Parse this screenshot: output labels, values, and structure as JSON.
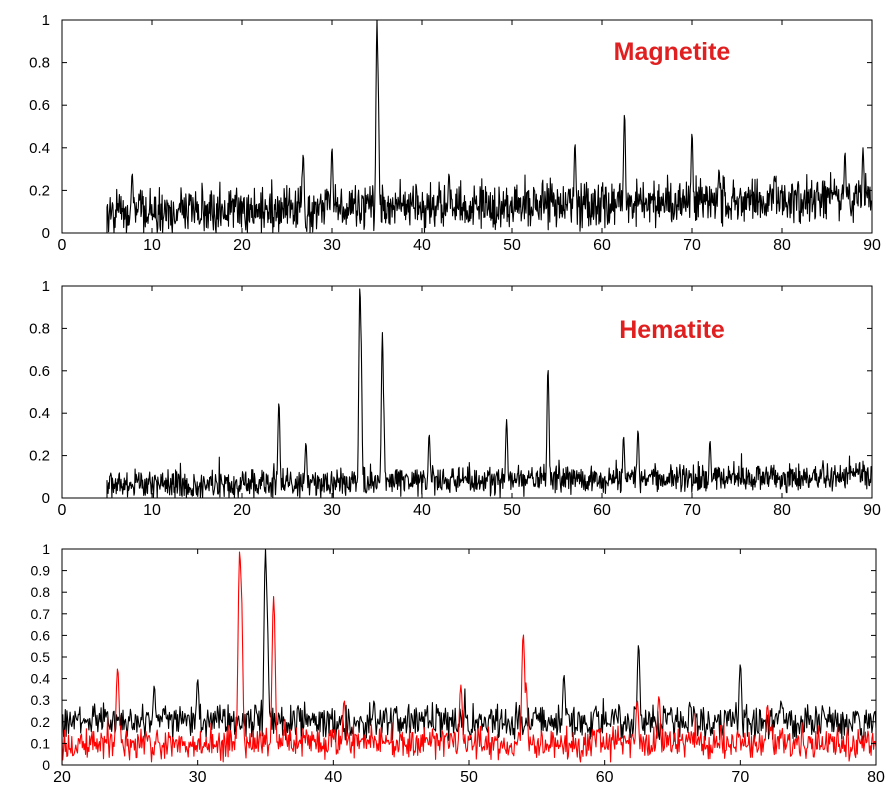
{
  "chart_data": [
    {
      "type": "line",
      "annotation": "Magnetite",
      "xlim": [
        0,
        90
      ],
      "ylim": [
        0,
        1
      ],
      "xticks": [
        0,
        10,
        20,
        30,
        40,
        50,
        60,
        70,
        80,
        90
      ],
      "yticks": [
        0,
        0.2,
        0.4,
        0.6,
        0.8,
        1
      ],
      "ytick_labels": [
        "0",
        "0.2",
        "0.4",
        "0.6",
        "0.8",
        "1"
      ],
      "series": [
        {
          "color": "#000000",
          "x_start": 5,
          "x_end": 90,
          "baseline_start": 0.09,
          "baseline_end": 0.16,
          "noise_amplitude": 0.13,
          "peaks": [
            [
              7.8,
              0.28
            ],
            [
              26.8,
              0.37
            ],
            [
              30.0,
              0.4
            ],
            [
              35.0,
              1.0
            ],
            [
              35.1,
              0.76
            ],
            [
              43.0,
              0.28
            ],
            [
              57.0,
              0.42
            ],
            [
              62.5,
              0.56
            ],
            [
              70.0,
              0.47
            ],
            [
              73.0,
              0.3
            ],
            [
              87.0,
              0.38
            ],
            [
              89.0,
              0.4
            ]
          ]
        }
      ]
    },
    {
      "type": "line",
      "annotation": "Hematite",
      "xlim": [
        0,
        90
      ],
      "ylim": [
        0,
        1
      ],
      "xticks": [
        0,
        10,
        20,
        30,
        40,
        50,
        60,
        70,
        80,
        90
      ],
      "yticks": [
        0,
        0.2,
        0.4,
        0.6,
        0.8,
        1
      ],
      "ytick_labels": [
        "0",
        "0.2",
        "0.4",
        "0.6",
        "0.8",
        "1"
      ],
      "series": [
        {
          "color": "#000000",
          "x_start": 5,
          "x_end": 90,
          "baseline_start": 0.06,
          "baseline_end": 0.1,
          "noise_amplitude": 0.08,
          "peaks": [
            [
              24.1,
              0.45
            ],
            [
              27.1,
              0.26
            ],
            [
              33.1,
              1.0
            ],
            [
              33.2,
              0.82
            ],
            [
              35.6,
              0.78
            ],
            [
              35.7,
              0.5
            ],
            [
              40.8,
              0.3
            ],
            [
              49.4,
              0.37
            ],
            [
              54.0,
              0.61
            ],
            [
              62.4,
              0.29
            ],
            [
              64.0,
              0.32
            ],
            [
              72.0,
              0.27
            ]
          ]
        }
      ]
    },
    {
      "type": "line",
      "xlim": [
        20,
        80
      ],
      "ylim": [
        0,
        1
      ],
      "xticks": [
        20,
        30,
        40,
        50,
        60,
        70,
        80
      ],
      "yticks": [
        0,
        0.1,
        0.2,
        0.3,
        0.4,
        0.5,
        0.6,
        0.7,
        0.8,
        0.9,
        1
      ],
      "ytick_labels": [
        "0",
        "0.1",
        "0.2",
        "0.3",
        "0.4",
        "0.5",
        "0.6",
        "0.7",
        "0.8",
        "0.9",
        "1"
      ],
      "series": [
        {
          "color": "#000000",
          "x_start": 20,
          "x_end": 80,
          "baseline_start": 0.2,
          "baseline_end": 0.2,
          "noise_amplitude": 0.1,
          "peaks": [
            [
              26.8,
              0.37
            ],
            [
              30.0,
              0.4
            ],
            [
              35.0,
              1.0
            ],
            [
              35.1,
              0.76
            ],
            [
              43.0,
              0.3
            ],
            [
              57.0,
              0.42
            ],
            [
              62.5,
              0.56
            ],
            [
              70.0,
              0.47
            ],
            [
              73.0,
              0.3
            ]
          ]
        },
        {
          "color": "#ff0000",
          "x_start": 20,
          "x_end": 80,
          "baseline_start": 0.1,
          "baseline_end": 0.1,
          "noise_amplitude": 0.09,
          "peaks": [
            [
              24.1,
              0.45
            ],
            [
              33.1,
              1.0
            ],
            [
              33.2,
              0.85
            ],
            [
              35.6,
              0.78
            ],
            [
              40.8,
              0.3
            ],
            [
              49.4,
              0.37
            ],
            [
              54.0,
              0.61
            ],
            [
              54.2,
              0.38
            ],
            [
              62.4,
              0.3
            ],
            [
              64.0,
              0.32
            ],
            [
              72.0,
              0.28
            ]
          ]
        }
      ]
    }
  ],
  "colors": {
    "axis": "#000000",
    "annotation": "#e02020"
  }
}
